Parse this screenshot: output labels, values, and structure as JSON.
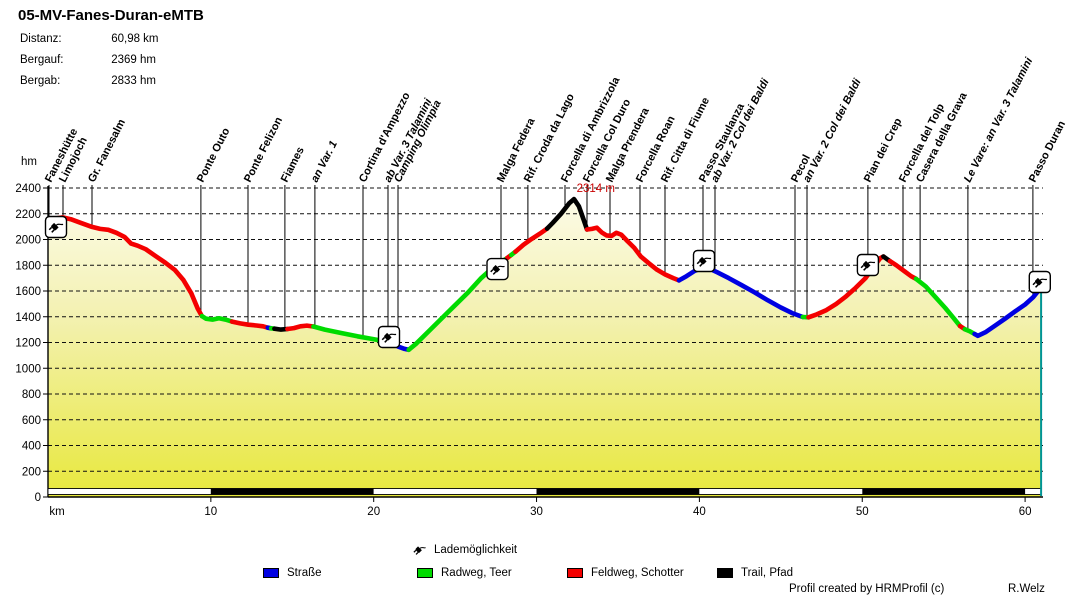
{
  "title": "05-MV-Fanes-Duran-eMTB",
  "stats": [
    {
      "label": "Distanz:",
      "value": "60,98 km"
    },
    {
      "label": "Bergauf:",
      "value": "2369 hm"
    },
    {
      "label": "Bergab:",
      "value": "2833 hm"
    }
  ],
  "legend": {
    "charge_label": "Lademöglichkeit",
    "items": [
      {
        "key": "road",
        "label": "Straße",
        "color": "#0000E2"
      },
      {
        "key": "bike",
        "label": "Radweg, Teer",
        "color": "#00DB00"
      },
      {
        "key": "gravel",
        "label": "Feldweg, Schotter",
        "color": "#F40000"
      },
      {
        "key": "trail",
        "label": "Trail, Pfad",
        "color": "#000000"
      }
    ]
  },
  "footer": {
    "credit": "Profil created by HRMProfil (c)",
    "author": "R.Welz"
  },
  "chart_data": {
    "type": "line",
    "xlabel": "km",
    "ylabel": "hm",
    "xlim": [
      0,
      61
    ],
    "ylim": [
      0,
      2400
    ],
    "x_ticks": [
      10,
      20,
      30,
      40,
      50,
      60
    ],
    "y_ticks": [
      0,
      200,
      400,
      600,
      800,
      1000,
      1200,
      1400,
      1600,
      1800,
      2000,
      2200,
      2400
    ],
    "grid": "dashed-horizontal",
    "distance_km": 60.98,
    "fill_gradient": [
      "#FDFCEC",
      "#F3F1B0",
      "#E8E83C"
    ],
    "end_line_color": "#009595",
    "peak_annotation": {
      "text": "2314 m",
      "km": 32.4,
      "hm": 2380,
      "color": "#C80000"
    },
    "surfaces": {
      "road": "#0000E2",
      "bike": "#00DB00",
      "gravel": "#F40000",
      "trail": "#000000"
    },
    "charge_icons": [
      {
        "km": 0.49,
        "hm": 2097
      },
      {
        "km": 20.94,
        "hm": 1243
      },
      {
        "km": 27.6,
        "hm": 1770
      },
      {
        "km": 40.28,
        "hm": 1833
      },
      {
        "km": 50.35,
        "hm": 1802
      },
      {
        "km": 60.9,
        "hm": 1670
      }
    ],
    "waypoints": [
      {
        "km": 0.06,
        "label": "Faneshütte",
        "italic": false
      },
      {
        "km": 0.92,
        "label": "Limojoch",
        "italic": false
      },
      {
        "km": 2.7,
        "label": "Gr. Fanesalm",
        "italic": false
      },
      {
        "km": 9.39,
        "label": "Ponte Outo",
        "italic": false
      },
      {
        "km": 12.28,
        "label": "Ponte Felizon",
        "italic": false
      },
      {
        "km": 14.55,
        "label": "Fiames",
        "italic": false
      },
      {
        "km": 16.39,
        "label": "an Var. 1",
        "italic": true
      },
      {
        "km": 19.34,
        "label": "Cortina d'Ampezzo",
        "italic": false
      },
      {
        "km": 20.88,
        "label": "ab Var. 3 Talamini",
        "italic": true
      },
      {
        "km": 21.49,
        "label": "Camping Olimpia",
        "italic": true
      },
      {
        "km": 27.82,
        "label": "Malga Federa",
        "italic": false
      },
      {
        "km": 29.47,
        "label": "Rif. Croda da Lago",
        "italic": false
      },
      {
        "km": 31.75,
        "label": "Forcella di Ambrizzola",
        "italic": false
      },
      {
        "km": 33.1,
        "label": "Forcella Col Duro",
        "italic": false
      },
      {
        "km": 34.51,
        "label": "Malga Prendera",
        "italic": false
      },
      {
        "km": 36.35,
        "label": "Forcella Roan",
        "italic": false
      },
      {
        "km": 37.89,
        "label": "Rif. Citta di Fiume",
        "italic": false
      },
      {
        "km": 40.22,
        "label": "Passo Staulanza",
        "italic": false
      },
      {
        "km": 40.96,
        "label": "ab Var. 2 Col dei Baldi",
        "italic": true
      },
      {
        "km": 45.87,
        "label": "Pecol",
        "italic": false
      },
      {
        "km": 46.61,
        "label": "an Var. 2 Col dei Baldi",
        "italic": true
      },
      {
        "km": 50.35,
        "label": "Pian dei Crep",
        "italic": false
      },
      {
        "km": 52.5,
        "label": "Forcella del Tolp",
        "italic": false
      },
      {
        "km": 53.55,
        "label": "Casera della Grava",
        "italic": false
      },
      {
        "km": 56.49,
        "label": "Le Vare: an Var. 3 Talamini",
        "italic": true
      },
      {
        "km": 60.48,
        "label": "Passo Duran",
        "italic": false
      }
    ],
    "segments": [
      {
        "surface": "gravel",
        "points": [
          [
            0,
            2148
          ],
          [
            0.4,
            2162
          ],
          [
            0.9,
            2172
          ],
          [
            1.4,
            2158
          ],
          [
            2.0,
            2130
          ],
          [
            2.7,
            2098
          ],
          [
            3.2,
            2082
          ],
          [
            3.7,
            2075
          ],
          [
            4.2,
            2052
          ],
          [
            4.7,
            2020
          ],
          [
            5.1,
            1968
          ],
          [
            5.5,
            1952
          ],
          [
            6.0,
            1925
          ],
          [
            6.6,
            1872
          ],
          [
            7.2,
            1820
          ],
          [
            7.8,
            1762
          ],
          [
            8.3,
            1688
          ],
          [
            8.8,
            1582
          ],
          [
            9.2,
            1462
          ],
          [
            9.45,
            1405
          ]
        ]
      },
      {
        "surface": "bike",
        "points": [
          [
            9.7,
            1385
          ],
          [
            10.1,
            1378
          ],
          [
            10.5,
            1388
          ],
          [
            10.9,
            1378
          ],
          [
            11.3,
            1362
          ]
        ]
      },
      {
        "surface": "gravel",
        "points": [
          [
            11.8,
            1348
          ],
          [
            12.3,
            1338
          ],
          [
            12.8,
            1332
          ],
          [
            13.2,
            1326
          ],
          [
            13.5,
            1315
          ]
        ]
      },
      {
        "surface": "road",
        "points": [
          [
            13.7,
            1310
          ]
        ]
      },
      {
        "surface": "bike",
        "points": [
          [
            13.9,
            1307
          ]
        ]
      },
      {
        "surface": "trail",
        "points": [
          [
            14.3,
            1300
          ],
          [
            14.7,
            1305
          ]
        ]
      },
      {
        "surface": "gravel",
        "points": [
          [
            15.1,
            1312
          ],
          [
            15.5,
            1326
          ],
          [
            15.9,
            1331
          ],
          [
            16.3,
            1324
          ]
        ]
      },
      {
        "surface": "bike",
        "points": [
          [
            17.0,
            1300
          ],
          [
            18.0,
            1274
          ],
          [
            19.0,
            1248
          ],
          [
            19.8,
            1230
          ],
          [
            20.6,
            1212
          ],
          [
            21.1,
            1192
          ]
        ]
      },
      {
        "surface": "road",
        "points": [
          [
            21.5,
            1168
          ],
          [
            21.9,
            1150
          ],
          [
            22.15,
            1143
          ]
        ]
      },
      {
        "surface": "bike",
        "points": [
          [
            22.6,
            1190
          ],
          [
            23.4,
            1290
          ],
          [
            24.2,
            1390
          ],
          [
            25.0,
            1490
          ],
          [
            25.8,
            1590
          ],
          [
            26.6,
            1700
          ],
          [
            27.4,
            1790
          ],
          [
            28.2,
            1856
          ]
        ]
      },
      {
        "surface": "gravel",
        "points": [
          [
            28.45,
            1880
          ]
        ]
      },
      {
        "surface": "bike",
        "points": [
          [
            28.7,
            1905
          ]
        ]
      },
      {
        "surface": "gravel",
        "points": [
          [
            29.2,
            1960
          ],
          [
            29.7,
            2005
          ],
          [
            30.2,
            2045
          ],
          [
            30.65,
            2085
          ]
        ]
      },
      {
        "surface": "trail",
        "points": [
          [
            31.0,
            2130
          ],
          [
            31.5,
            2200
          ],
          [
            32.0,
            2280
          ],
          [
            32.3,
            2314
          ],
          [
            32.6,
            2258
          ],
          [
            32.9,
            2150
          ],
          [
            33.1,
            2078
          ]
        ]
      },
      {
        "surface": "gravel",
        "points": [
          [
            33.4,
            2082
          ],
          [
            33.7,
            2092
          ],
          [
            34.0,
            2055
          ],
          [
            34.3,
            2032
          ],
          [
            34.6,
            2028
          ],
          [
            34.9,
            2052
          ],
          [
            35.2,
            2038
          ],
          [
            35.6,
            1985
          ],
          [
            36.0,
            1935
          ],
          [
            36.4,
            1868
          ],
          [
            36.9,
            1815
          ],
          [
            37.4,
            1765
          ],
          [
            37.9,
            1728
          ],
          [
            38.4,
            1700
          ],
          [
            38.75,
            1682
          ]
        ]
      },
      {
        "surface": "road",
        "points": [
          [
            39.2,
            1715
          ],
          [
            39.7,
            1755
          ],
          [
            40.2,
            1782
          ],
          [
            40.6,
            1775
          ],
          [
            41.1,
            1745
          ],
          [
            41.8,
            1700
          ],
          [
            42.6,
            1645
          ],
          [
            43.4,
            1588
          ],
          [
            44.2,
            1528
          ],
          [
            45.0,
            1472
          ],
          [
            45.7,
            1428
          ],
          [
            46.35,
            1398
          ]
        ]
      },
      {
        "surface": "bike",
        "points": [
          [
            46.7,
            1396
          ]
        ]
      },
      {
        "surface": "gravel",
        "points": [
          [
            47.2,
            1418
          ],
          [
            47.8,
            1452
          ],
          [
            48.4,
            1500
          ],
          [
            49.0,
            1558
          ],
          [
            49.6,
            1625
          ],
          [
            50.2,
            1700
          ],
          [
            50.7,
            1788
          ],
          [
            51.1,
            1855
          ],
          [
            51.3,
            1868
          ]
        ]
      },
      {
        "surface": "trail",
        "points": [
          [
            51.7,
            1832
          ]
        ]
      },
      {
        "surface": "gravel",
        "points": [
          [
            52.1,
            1800
          ],
          [
            52.6,
            1752
          ],
          [
            53.0,
            1715
          ],
          [
            53.3,
            1695
          ]
        ]
      },
      {
        "surface": "bike",
        "points": [
          [
            53.9,
            1635
          ],
          [
            54.5,
            1552
          ],
          [
            55.1,
            1468
          ],
          [
            55.6,
            1392
          ],
          [
            56.0,
            1328
          ]
        ]
      },
      {
        "surface": "gravel",
        "points": [
          [
            56.3,
            1303
          ]
        ]
      },
      {
        "surface": "bike",
        "points": [
          [
            56.6,
            1288
          ],
          [
            56.9,
            1266
          ]
        ]
      },
      {
        "surface": "road",
        "points": [
          [
            57.1,
            1252
          ],
          [
            57.6,
            1282
          ],
          [
            58.2,
            1335
          ],
          [
            58.8,
            1388
          ],
          [
            59.4,
            1442
          ],
          [
            60.0,
            1495
          ],
          [
            60.5,
            1552
          ],
          [
            60.98,
            1628
          ]
        ]
      }
    ]
  }
}
